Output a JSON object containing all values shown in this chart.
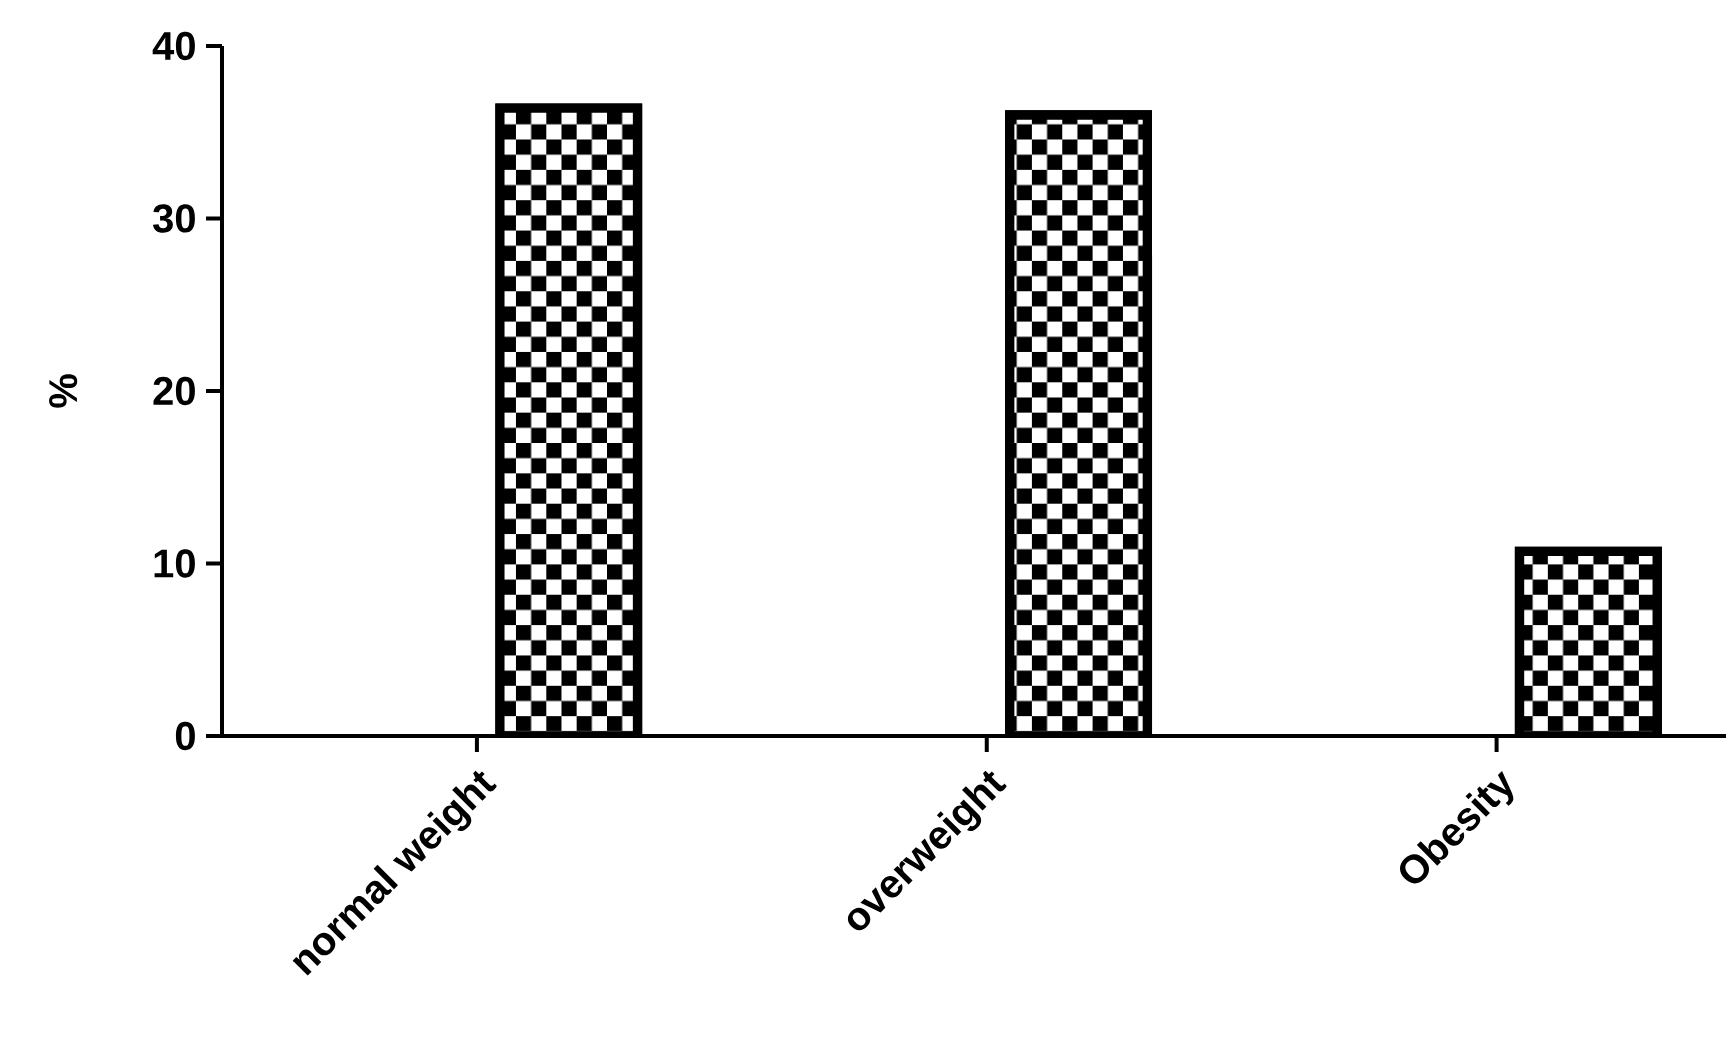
{
  "chart_data": {
    "type": "bar",
    "ylabel": "%",
    "categories": [
      "normal weight",
      "overweight",
      "Obesity"
    ],
    "values": [
      36.4,
      36.0,
      10.7
    ],
    "color": "#000000",
    "ylim": [
      0,
      40
    ],
    "yticks": [
      0,
      10,
      20,
      30,
      40
    ]
  }
}
